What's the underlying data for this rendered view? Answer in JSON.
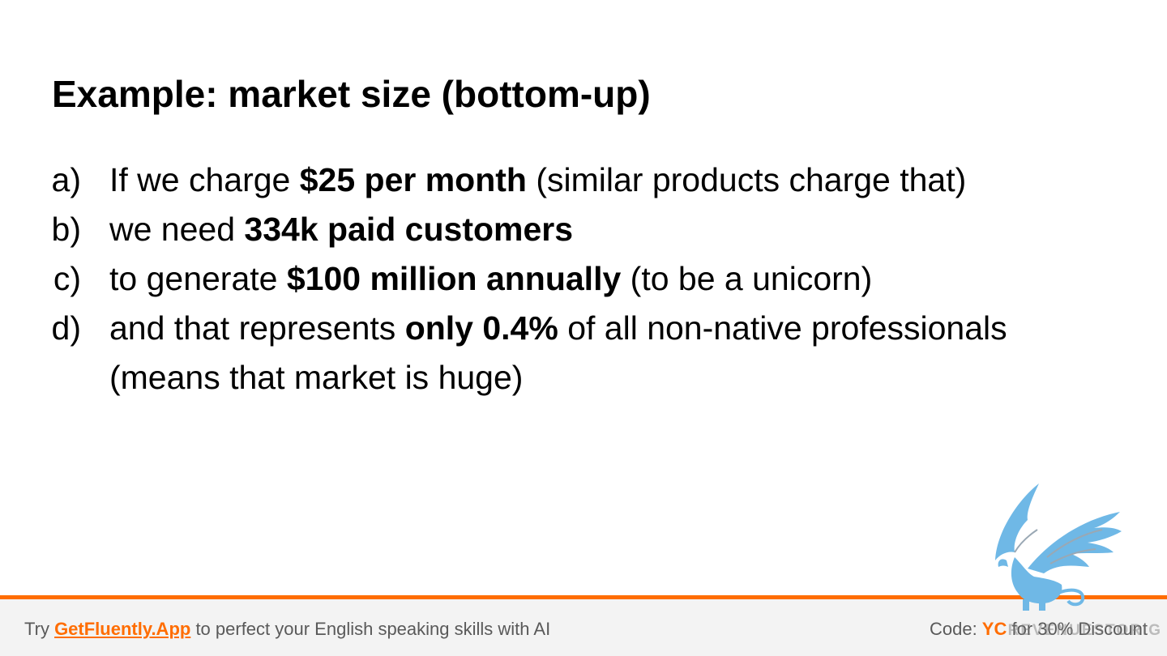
{
  "slide": {
    "title": "Example: market size (bottom-up)",
    "bullets": [
      {
        "marker": "a)",
        "before": "If we charge ",
        "strong": "$25 per month",
        "after": " (similar products charge that)"
      },
      {
        "marker": "b)",
        "before": "we need ",
        "strong": "334k paid customers",
        "after": ""
      },
      {
        "marker": "c)",
        "before": "to generate ",
        "strong": "$100 million annually",
        "after": " (to be a unicorn)"
      },
      {
        "marker": "d)",
        "before": "and that represents ",
        "strong": "only 0.4%",
        "after": " of all non-native professionals",
        "continuation": "(means that market is huge)"
      }
    ]
  },
  "footer": {
    "try_label": "Try ",
    "link_text": "GetFluently.App",
    "tagline": " to perfect your English speaking skills with AI",
    "code_label": "Code: ",
    "code_value": "YC",
    "discount_text": " for 30% Discount",
    "watermark": "REVENUESTORIG"
  },
  "mascot": {
    "icon": "griffin-icon",
    "color": "#6fb8e6"
  },
  "colors": {
    "accent": "#ff6d01",
    "footer_bg": "#f3f3f3",
    "footer_text": "#595959"
  }
}
